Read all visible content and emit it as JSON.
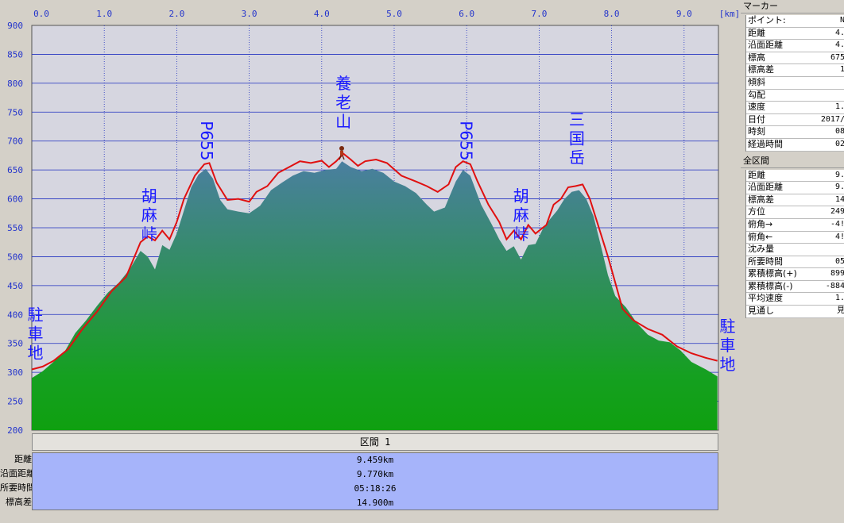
{
  "chart_data": {
    "type": "area",
    "x_unit": "[km]",
    "xlim": [
      0,
      9.459
    ],
    "ylim": [
      200,
      900
    ],
    "x_ticks": [
      "0.0",
      "1.0",
      "2.0",
      "3.0",
      "4.0",
      "5.0",
      "6.0",
      "7.0",
      "8.0",
      "9.0"
    ],
    "y_ticks": [
      "900",
      "850",
      "800",
      "750",
      "700",
      "650",
      "600",
      "550",
      "500",
      "450",
      "400",
      "350",
      "300",
      "250",
      "200"
    ],
    "grid": true,
    "series": [
      {
        "color": "#e01010",
        "values": [
          [
            0,
            305
          ],
          [
            0.15,
            310
          ],
          [
            0.3,
            320
          ],
          [
            0.5,
            340
          ],
          [
            0.7,
            375
          ],
          [
            0.9,
            405
          ],
          [
            1.1,
            440
          ],
          [
            1.3,
            465
          ],
          [
            1.5,
            525
          ],
          [
            1.6,
            535
          ],
          [
            1.7,
            528
          ],
          [
            1.8,
            545
          ],
          [
            1.9,
            530
          ],
          [
            2.0,
            560
          ],
          [
            2.1,
            600
          ],
          [
            2.25,
            640
          ],
          [
            2.38,
            660
          ],
          [
            2.45,
            662
          ],
          [
            2.55,
            628
          ],
          [
            2.7,
            598
          ],
          [
            2.85,
            600
          ],
          [
            3.0,
            595
          ],
          [
            3.1,
            612
          ],
          [
            3.25,
            622
          ],
          [
            3.4,
            645
          ],
          [
            3.55,
            655
          ],
          [
            3.7,
            665
          ],
          [
            3.85,
            662
          ],
          [
            4.0,
            666
          ],
          [
            4.1,
            655
          ],
          [
            4.2,
            665
          ],
          [
            4.3,
            678
          ],
          [
            4.4,
            668
          ],
          [
            4.5,
            657
          ],
          [
            4.6,
            665
          ],
          [
            4.75,
            668
          ],
          [
            4.9,
            662
          ],
          [
            5.1,
            640
          ],
          [
            5.3,
            630
          ],
          [
            5.45,
            622
          ],
          [
            5.6,
            612
          ],
          [
            5.75,
            625
          ],
          [
            5.85,
            655
          ],
          [
            5.95,
            665
          ],
          [
            6.05,
            660
          ],
          [
            6.15,
            630
          ],
          [
            6.3,
            590
          ],
          [
            6.45,
            560
          ],
          [
            6.55,
            530
          ],
          [
            6.65,
            545
          ],
          [
            6.75,
            530
          ],
          [
            6.85,
            555
          ],
          [
            6.95,
            540
          ],
          [
            7.1,
            555
          ],
          [
            7.2,
            590
          ],
          [
            7.3,
            600
          ],
          [
            7.4,
            620
          ],
          [
            7.5,
            622
          ],
          [
            7.6,
            625
          ],
          [
            7.7,
            600
          ],
          [
            7.85,
            540
          ],
          [
            7.95,
            500
          ],
          [
            8.05,
            455
          ],
          [
            8.15,
            410
          ],
          [
            8.3,
            390
          ],
          [
            8.5,
            375
          ],
          [
            8.7,
            365
          ],
          [
            8.9,
            345
          ],
          [
            9.1,
            333
          ],
          [
            9.3,
            325
          ],
          [
            9.459,
            320
          ]
        ]
      },
      {
        "color": "#12a012",
        "values": [
          [
            0,
            290
          ],
          [
            0.15,
            302
          ],
          [
            0.3,
            318
          ],
          [
            0.45,
            335
          ],
          [
            0.6,
            368
          ],
          [
            0.75,
            390
          ],
          [
            0.9,
            415
          ],
          [
            1.05,
            438
          ],
          [
            1.2,
            455
          ],
          [
            1.35,
            478
          ],
          [
            1.5,
            510
          ],
          [
            1.6,
            500
          ],
          [
            1.7,
            478
          ],
          [
            1.8,
            520
          ],
          [
            1.9,
            512
          ],
          [
            2.0,
            540
          ],
          [
            2.1,
            580
          ],
          [
            2.2,
            620
          ],
          [
            2.3,
            642
          ],
          [
            2.4,
            652
          ],
          [
            2.5,
            635
          ],
          [
            2.6,
            598
          ],
          [
            2.7,
            582
          ],
          [
            2.85,
            578
          ],
          [
            3.0,
            575
          ],
          [
            3.15,
            588
          ],
          [
            3.3,
            615
          ],
          [
            3.45,
            628
          ],
          [
            3.6,
            640
          ],
          [
            3.75,
            648
          ],
          [
            3.9,
            645
          ],
          [
            4.05,
            650
          ],
          [
            4.2,
            652
          ],
          [
            4.28,
            665
          ],
          [
            4.4,
            655
          ],
          [
            4.55,
            648
          ],
          [
            4.7,
            652
          ],
          [
            4.85,
            645
          ],
          [
            5.0,
            630
          ],
          [
            5.15,
            622
          ],
          [
            5.3,
            610
          ],
          [
            5.45,
            590
          ],
          [
            5.55,
            578
          ],
          [
            5.7,
            585
          ],
          [
            5.85,
            630
          ],
          [
            5.95,
            650
          ],
          [
            6.05,
            640
          ],
          [
            6.2,
            590
          ],
          [
            6.35,
            555
          ],
          [
            6.45,
            530
          ],
          [
            6.55,
            510
          ],
          [
            6.65,
            518
          ],
          [
            6.75,
            495
          ],
          [
            6.85,
            520
          ],
          [
            6.95,
            522
          ],
          [
            7.05,
            548
          ],
          [
            7.15,
            565
          ],
          [
            7.25,
            580
          ],
          [
            7.35,
            600
          ],
          [
            7.45,
            612
          ],
          [
            7.55,
            615
          ],
          [
            7.65,
            600
          ],
          [
            7.75,
            570
          ],
          [
            7.85,
            520
          ],
          [
            7.95,
            468
          ],
          [
            8.05,
            432
          ],
          [
            8.2,
            412
          ],
          [
            8.35,
            385
          ],
          [
            8.5,
            365
          ],
          [
            8.65,
            355
          ],
          [
            8.8,
            352
          ],
          [
            8.95,
            338
          ],
          [
            9.1,
            318
          ],
          [
            9.3,
            305
          ],
          [
            9.459,
            293
          ]
        ]
      }
    ],
    "annotations": [
      {
        "text": "駐車地",
        "x": 0.05,
        "y": 390
      },
      {
        "text": "胡麻峠",
        "x": 1.62,
        "y": 595
      },
      {
        "text": "P655",
        "x": 2.4,
        "y": 735
      },
      {
        "text": "養老山",
        "x": 4.3,
        "y": 790
      },
      {
        "text": "P655",
        "x": 5.98,
        "y": 735
      },
      {
        "text": "胡麻峠",
        "x": 6.75,
        "y": 595
      },
      {
        "text": "三国岳",
        "x": 7.52,
        "y": 728
      },
      {
        "text": "駐車地",
        "x": 9.6,
        "y": 370
      }
    ]
  },
  "section": {
    "header": "区間 1",
    "rows": [
      {
        "label": "距離",
        "value": "9.459km"
      },
      {
        "label": "沿面距離",
        "value": "9.770km"
      },
      {
        "label": "所要時間",
        "value": "05:18:26"
      },
      {
        "label": "標高差",
        "value": "14.900m"
      }
    ]
  },
  "panel": {
    "marker_title": "マーカー",
    "marker_rows": [
      {
        "k": "ポイント:",
        "v": "N"
      },
      {
        "k": "距離",
        "v": "4."
      },
      {
        "k": "沿面距離",
        "v": "4."
      },
      {
        "k": "標高",
        "v": "675"
      },
      {
        "k": "標高差",
        "v": "1"
      },
      {
        "k": "傾斜",
        "v": ""
      },
      {
        "k": "勾配",
        "v": ""
      },
      {
        "k": "速度",
        "v": "1."
      },
      {
        "k": "日付",
        "v": "2017/"
      },
      {
        "k": "時刻",
        "v": "08"
      },
      {
        "k": "経過時間",
        "v": "02"
      }
    ],
    "all_title": "全区間",
    "all_rows": [
      {
        "k": "距離",
        "v": "9."
      },
      {
        "k": "沿面距離",
        "v": "9."
      },
      {
        "k": "標高差",
        "v": "14"
      },
      {
        "k": "方位",
        "v": "249"
      },
      {
        "k": "俯角→",
        "v": "-4!"
      },
      {
        "k": "俯角←",
        "v": "4!"
      },
      {
        "k": "沈み量",
        "v": ""
      },
      {
        "k": "所要時間",
        "v": "05"
      },
      {
        "k": "累積標高(+)",
        "v": "899"
      },
      {
        "k": "累積標高(-)",
        "v": "-884"
      },
      {
        "k": "平均速度",
        "v": "1."
      },
      {
        "k": "見通し",
        "v": "見"
      }
    ]
  }
}
